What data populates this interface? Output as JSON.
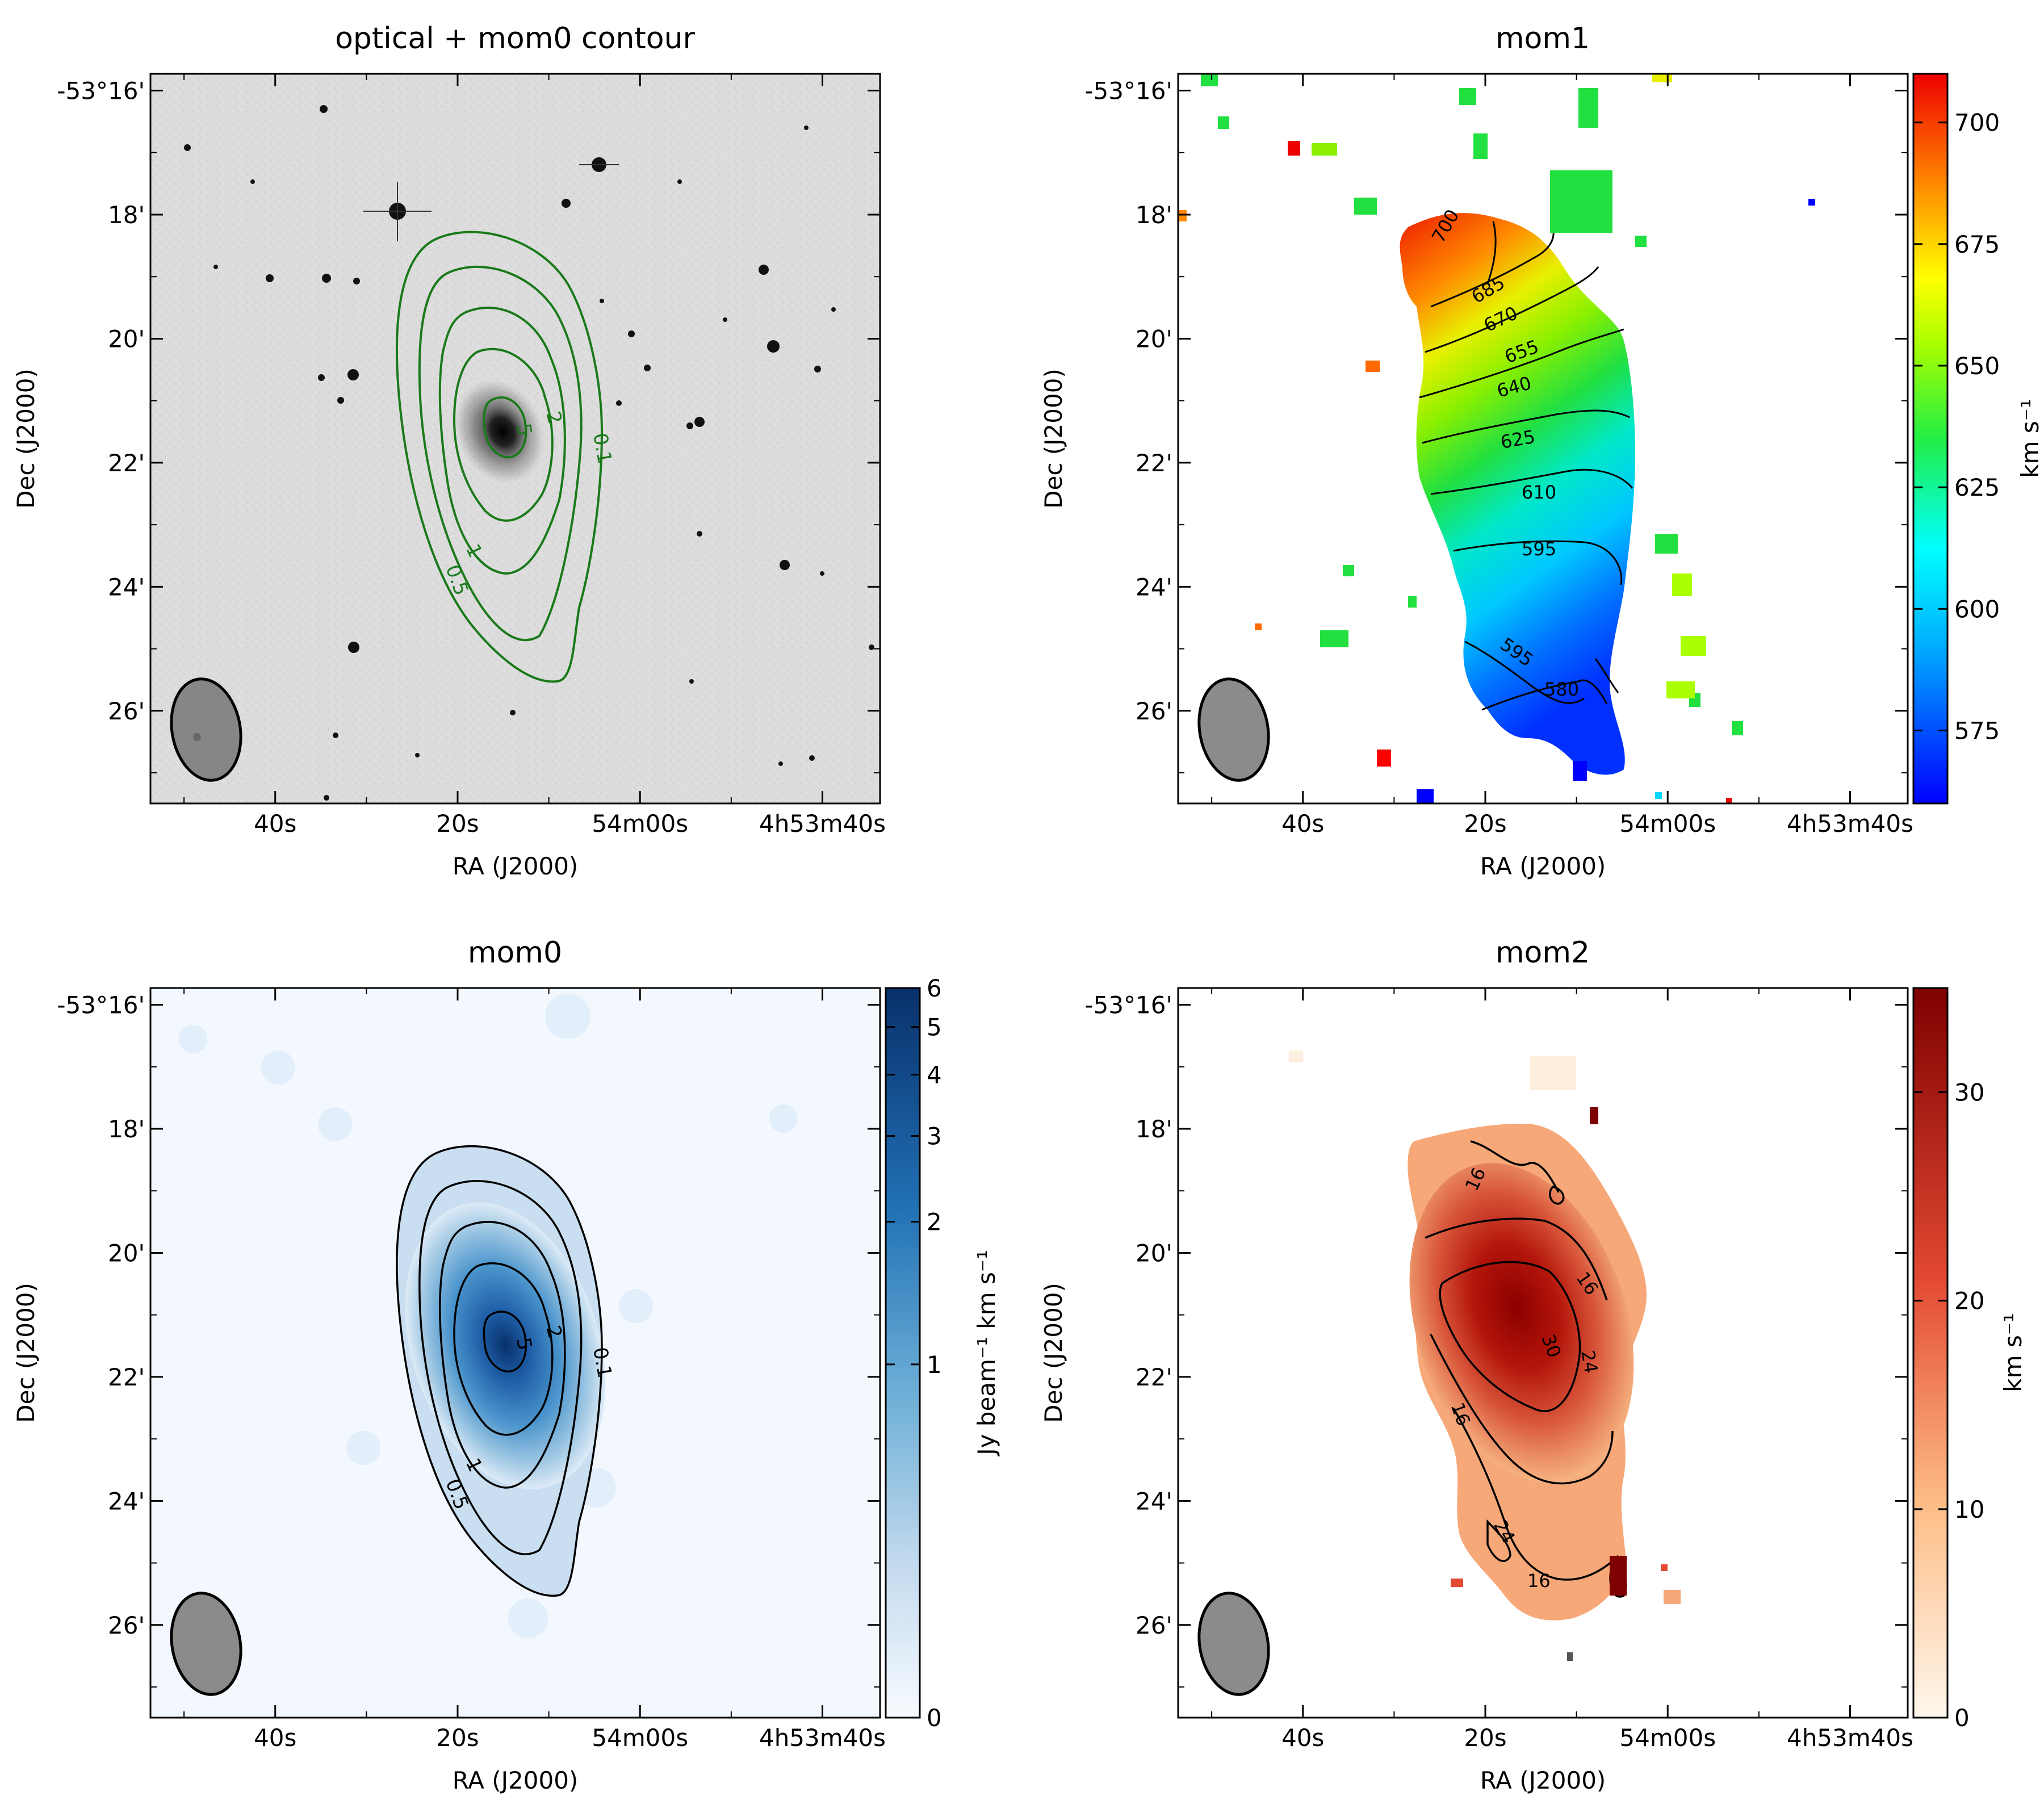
{
  "figure": {
    "panels": [
      {
        "id": "optical",
        "title": "optical + mom0 contour",
        "xlabel": "RA (J2000)",
        "ylabel": "Dec (J2000)",
        "contour_levels": [
          "0.1",
          "0.5",
          "1",
          "2",
          "5"
        ],
        "contour_color": "#1a7a1a",
        "colorbar": null
      },
      {
        "id": "mom1",
        "title": "mom1",
        "xlabel": "RA (J2000)",
        "ylabel": "Dec (J2000)",
        "contour_levels": [
          "580",
          "595",
          "610",
          "625",
          "640",
          "655",
          "670",
          "685",
          "700"
        ],
        "colorbar": {
          "label": "km s⁻¹",
          "ticks": [
            "575",
            "600",
            "625",
            "650",
            "675",
            "700"
          ],
          "range": [
            560,
            710
          ],
          "cmap": "jet"
        }
      },
      {
        "id": "mom0",
        "title": "mom0",
        "xlabel": "RA (J2000)",
        "ylabel": "Dec (J2000)",
        "contour_levels": [
          "0.1",
          "0.5",
          "1",
          "2",
          "5"
        ],
        "colorbar": {
          "label": "Jy beam⁻¹ km s⁻¹",
          "ticks": [
            "0",
            "1",
            "2",
            "3",
            "4",
            "5",
            "6"
          ],
          "range": [
            0,
            6
          ],
          "cmap": "Blues"
        }
      },
      {
        "id": "mom2",
        "title": "mom2",
        "xlabel": "RA (J2000)",
        "ylabel": "Dec (J2000)",
        "contour_levels": [
          "16",
          "24",
          "30"
        ],
        "colorbar": {
          "label": "km s⁻¹",
          "ticks": [
            "0",
            "10",
            "20",
            "30"
          ],
          "range": [
            0,
            35
          ],
          "cmap": "OrRd"
        }
      }
    ],
    "ra_ticks": [
      "40s",
      "20s",
      "54m00s",
      "4h53m40s"
    ],
    "dec_ticks": [
      "-53°16'",
      "18'",
      "20'",
      "22'",
      "24'",
      "26'"
    ]
  },
  "chart_data": [
    {
      "type": "heatmap",
      "title": "optical + mom0 contour",
      "xlabel": "RA (J2000)",
      "ylabel": "Dec (J2000)",
      "x_ticks": [
        "40s",
        "20s",
        "54m00s",
        "4h53m40s"
      ],
      "y_ticks": [
        "-53°16'",
        "18'",
        "20'",
        "22'",
        "24'",
        "26'"
      ],
      "contour_levels": [
        0.1,
        0.5,
        1,
        2,
        5
      ]
    },
    {
      "type": "heatmap",
      "title": "mom1",
      "xlabel": "RA (J2000)",
      "ylabel": "Dec (J2000)",
      "x_ticks": [
        "40s",
        "20s",
        "54m00s",
        "4h53m40s"
      ],
      "y_ticks": [
        "-53°16'",
        "18'",
        "20'",
        "22'",
        "24'",
        "26'"
      ],
      "colorbar_label": "km s⁻¹",
      "colorbar_ticks": [
        575,
        600,
        625,
        650,
        675,
        700
      ],
      "color_range": [
        560,
        710
      ],
      "contour_levels": [
        580,
        595,
        610,
        625,
        640,
        655,
        670,
        685,
        700
      ]
    },
    {
      "type": "heatmap",
      "title": "mom0",
      "xlabel": "RA (J2000)",
      "ylabel": "Dec (J2000)",
      "x_ticks": [
        "40s",
        "20s",
        "54m00s",
        "4h53m40s"
      ],
      "y_ticks": [
        "-53°16'",
        "18'",
        "20'",
        "22'",
        "24'",
        "26'"
      ],
      "colorbar_label": "Jy beam⁻¹ km s⁻¹",
      "colorbar_ticks": [
        0,
        1,
        2,
        3,
        4,
        5,
        6
      ],
      "color_range": [
        0,
        6
      ],
      "contour_levels": [
        0.1,
        0.5,
        1,
        2,
        5
      ]
    },
    {
      "type": "heatmap",
      "title": "mom2",
      "xlabel": "RA (J2000)",
      "ylabel": "Dec (J2000)",
      "x_ticks": [
        "40s",
        "20s",
        "54m00s",
        "4h53m40s"
      ],
      "y_ticks": [
        "-53°16'",
        "18'",
        "20'",
        "22'",
        "24'",
        "26'"
      ],
      "colorbar_label": "km s⁻¹",
      "colorbar_ticks": [
        0,
        10,
        20,
        30
      ],
      "color_range": [
        0,
        35
      ],
      "contour_levels": [
        16,
        24,
        30
      ]
    }
  ]
}
